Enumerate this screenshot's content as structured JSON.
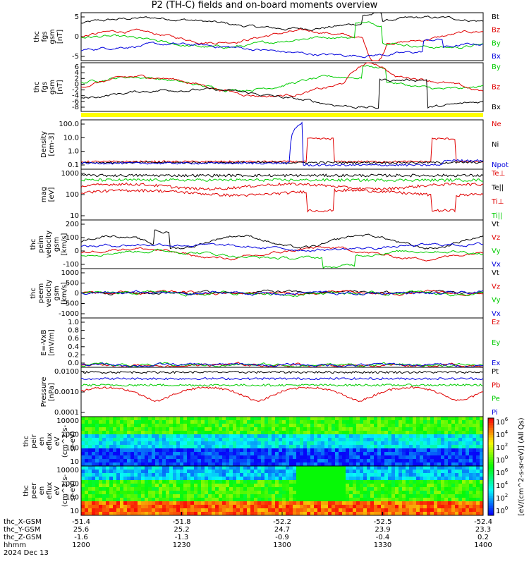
{
  "title": "P2 (TH-C) fields and on-board moments overview",
  "colors": {
    "black": "#000000",
    "red": "#e00000",
    "green": "#00dd00",
    "blue": "#0000dd",
    "yellow": "#ffff00"
  },
  "chart_data": [
    {
      "type": "line",
      "ylabel": [
        "thc",
        "fgs",
        "gsm",
        "[nT]"
      ],
      "yticks": [
        "5",
        "0",
        "-5"
      ],
      "ylim": [
        -8,
        10
      ],
      "series": [
        {
          "name": "Bt",
          "color": "#000000"
        },
        {
          "name": "Bz",
          "color": "#e00000"
        },
        {
          "name": "By",
          "color": "#00cc00"
        },
        {
          "name": "Bx",
          "color": "#0000dd"
        }
      ]
    },
    {
      "type": "line",
      "ylabel": [
        "thc",
        "fgs",
        "gsm",
        "[nT]"
      ],
      "yticks": [
        "6",
        "4",
        "2",
        "0",
        "-2",
        "-4",
        "-6",
        "-8"
      ],
      "ylim": [
        -9,
        6.5
      ],
      "series": [
        {
          "name": "By",
          "color": "#00cc00"
        },
        {
          "name": "Bz",
          "color": "#e00000"
        },
        {
          "name": "Bx",
          "color": "#000000"
        }
      ]
    },
    {
      "type": "line",
      "ylabel": [
        "Density",
        "[cm-3]"
      ],
      "yticks": [
        "100.0",
        "10.0",
        "1.0",
        "0.1"
      ],
      "log": true,
      "ylim": [
        0.08,
        140
      ],
      "series": [
        {
          "name": "Ne",
          "color": "#e00000"
        },
        {
          "name": "Ni",
          "color": "#000000"
        },
        {
          "name": "Npot",
          "color": "#0000dd"
        }
      ]
    },
    {
      "type": "line",
      "ylabel": [
        "mag",
        "[eV]"
      ],
      "yticks": [
        "1000",
        "100",
        "10"
      ],
      "log": true,
      "ylim": [
        7,
        2000
      ],
      "series": [
        {
          "name": "Te⊥",
          "color": "#e00000"
        },
        {
          "name": "Te||",
          "color": "#000000"
        },
        {
          "name": "Ti⊥",
          "color": "#e00000"
        },
        {
          "name": "Ti||",
          "color": "#00cc00"
        }
      ]
    },
    {
      "type": "line",
      "ylabel": [
        "thc",
        "peim",
        "velocity",
        "gsm",
        "[km/s]"
      ],
      "yticks": [
        "200",
        "100",
        "0",
        "-100"
      ],
      "ylim": [
        -150,
        230
      ],
      "series": [
        {
          "name": "Vt",
          "color": "#000000"
        },
        {
          "name": "Vz",
          "color": "#e00000"
        },
        {
          "name": "Vy",
          "color": "#00cc00"
        },
        {
          "name": "Vx",
          "color": "#0000dd"
        }
      ]
    },
    {
      "type": "line",
      "ylabel": [
        "thc",
        "peem",
        "velocity",
        "gsm",
        "[km/s]"
      ],
      "yticks": [
        "1000",
        "500",
        "0",
        "-500",
        "-1000"
      ],
      "ylim": [
        -1050,
        1050
      ],
      "series": [
        {
          "name": "Vt",
          "color": "#000000"
        },
        {
          "name": "Vz",
          "color": "#e00000"
        },
        {
          "name": "Vy",
          "color": "#00cc00"
        },
        {
          "name": "Vx",
          "color": "#0000dd"
        }
      ]
    },
    {
      "type": "line",
      "ylabel": [
        "E=-VxB",
        "[mV/m]"
      ],
      "yticks": [
        "1.0",
        "0.8",
        "0.6",
        "0.4",
        "0.2",
        "0.0"
      ],
      "ylim": [
        -0.05,
        1.0
      ],
      "series": [
        {
          "name": "Ez",
          "color": "#e00000"
        },
        {
          "name": "Ey",
          "color": "#00cc00"
        },
        {
          "name": "Ex",
          "color": "#0000dd"
        }
      ]
    },
    {
      "type": "line",
      "ylabel": [
        "Pressure",
        "[nPa]"
      ],
      "yticks": [
        "0.0100",
        "0.0010",
        "0.0001"
      ],
      "log": true,
      "ylim": [
        9e-05,
        0.1
      ],
      "series": [
        {
          "name": "Pt",
          "color": "#000000"
        },
        {
          "name": "Pb",
          "color": "#e00000"
        },
        {
          "name": "Pe",
          "color": "#00cc00"
        },
        {
          "name": "Pi",
          "color": "#0000dd"
        }
      ]
    },
    {
      "type": "heatmap",
      "ylabel": [
        "thc",
        "peir",
        "en",
        "eflux",
        "eV",
        "(cm^2-s-",
        "sr-eV)"
      ],
      "yticks": [
        "10000",
        "1000",
        "100",
        "10"
      ],
      "log": true
    },
    {
      "type": "heatmap",
      "ylabel": [
        "thc",
        "peer",
        "en",
        "eflux",
        "eV",
        "(cm^2-s-",
        "sr-eV)"
      ],
      "yticks": [
        "10000",
        "1000",
        "100",
        "10"
      ],
      "log": true
    }
  ],
  "colorbar": {
    "ticks": [
      "10^6",
      "10^4",
      "10^2",
      "10^0",
      "10^6",
      "10^4",
      "10^2",
      "10^0"
    ],
    "label": "[eV/(cm^2-s-sr-eV)] (All Qs)"
  },
  "xaxis": {
    "rows": [
      {
        "label": "thc_X-GSM",
        "values": [
          "-51.4",
          "-51.8",
          "-52.2",
          "-52.5",
          "-52.4"
        ]
      },
      {
        "label": "thc_Y-GSM",
        "values": [
          "25.6",
          "25.2",
          "24.7",
          "23.9",
          "23.3"
        ]
      },
      {
        "label": "thc_Z-GSM",
        "values": [
          "-1.6",
          "-1.3",
          "-0.9",
          "-0.4",
          "0.2"
        ]
      },
      {
        "label": "hhmm",
        "values": [
          "1200",
          "1230",
          "1300",
          "1330",
          "1400"
        ]
      }
    ],
    "date": "2024 Dec 13"
  }
}
